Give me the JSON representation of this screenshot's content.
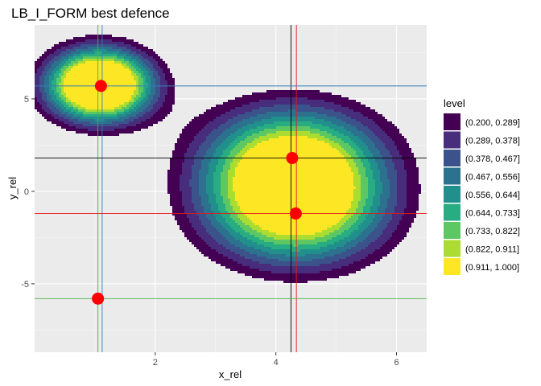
{
  "chart_data": {
    "type": "contour",
    "title": "LB_I_FORM best defence",
    "xlabel": "x_rel",
    "ylabel": "y_rel",
    "xlim": [
      0.0,
      6.5
    ],
    "ylim": [
      -8.7,
      9.0
    ],
    "x_ticks": [
      2,
      4,
      6
    ],
    "y_ticks": [
      -5,
      0,
      5
    ],
    "grid": true,
    "legend": {
      "title": "level",
      "placement": "right",
      "entries": [
        {
          "label": "(0.200, 0.289]",
          "color": "#440154"
        },
        {
          "label": "(0.289, 0.378]",
          "color": "#472D7B"
        },
        {
          "label": "(0.378, 0.467]",
          "color": "#3B528B"
        },
        {
          "label": "(0.467, 0.556]",
          "color": "#2C728E"
        },
        {
          "label": "(0.556, 0.644]",
          "color": "#21908C"
        },
        {
          "label": "(0.644, 0.733]",
          "color": "#27AD81"
        },
        {
          "label": "(0.733, 0.822]",
          "color": "#5DC863"
        },
        {
          "label": "(0.822, 0.911]",
          "color": "#AADC32"
        },
        {
          "label": "(0.911, 1.000]",
          "color": "#FDE725"
        }
      ]
    },
    "points": [
      {
        "x": 1.1,
        "y": 5.7
      },
      {
        "x": 1.05,
        "y": -5.8
      },
      {
        "x": 4.27,
        "y": 1.8
      },
      {
        "x": 4.33,
        "y": -1.2
      }
    ],
    "reference_lines": [
      {
        "orientation": "vertical",
        "value": 1.05,
        "color": "#4DAF4A"
      },
      {
        "orientation": "vertical",
        "value": 1.12,
        "color": "#377EB8"
      },
      {
        "orientation": "vertical",
        "value": 4.25,
        "color": "#000000"
      },
      {
        "orientation": "vertical",
        "value": 4.34,
        "color": "#E41A1C"
      },
      {
        "orientation": "horizontal",
        "value": 5.7,
        "color": "#377EB8"
      },
      {
        "orientation": "horizontal",
        "value": 1.8,
        "color": "#000000"
      },
      {
        "orientation": "horizontal",
        "value": -1.2,
        "color": "#E41A1C"
      },
      {
        "orientation": "horizontal",
        "value": -5.8,
        "color": "#4DAF4A"
      }
    ],
    "panel_background": "#EBEBEB",
    "point_color": "#FF0000"
  }
}
